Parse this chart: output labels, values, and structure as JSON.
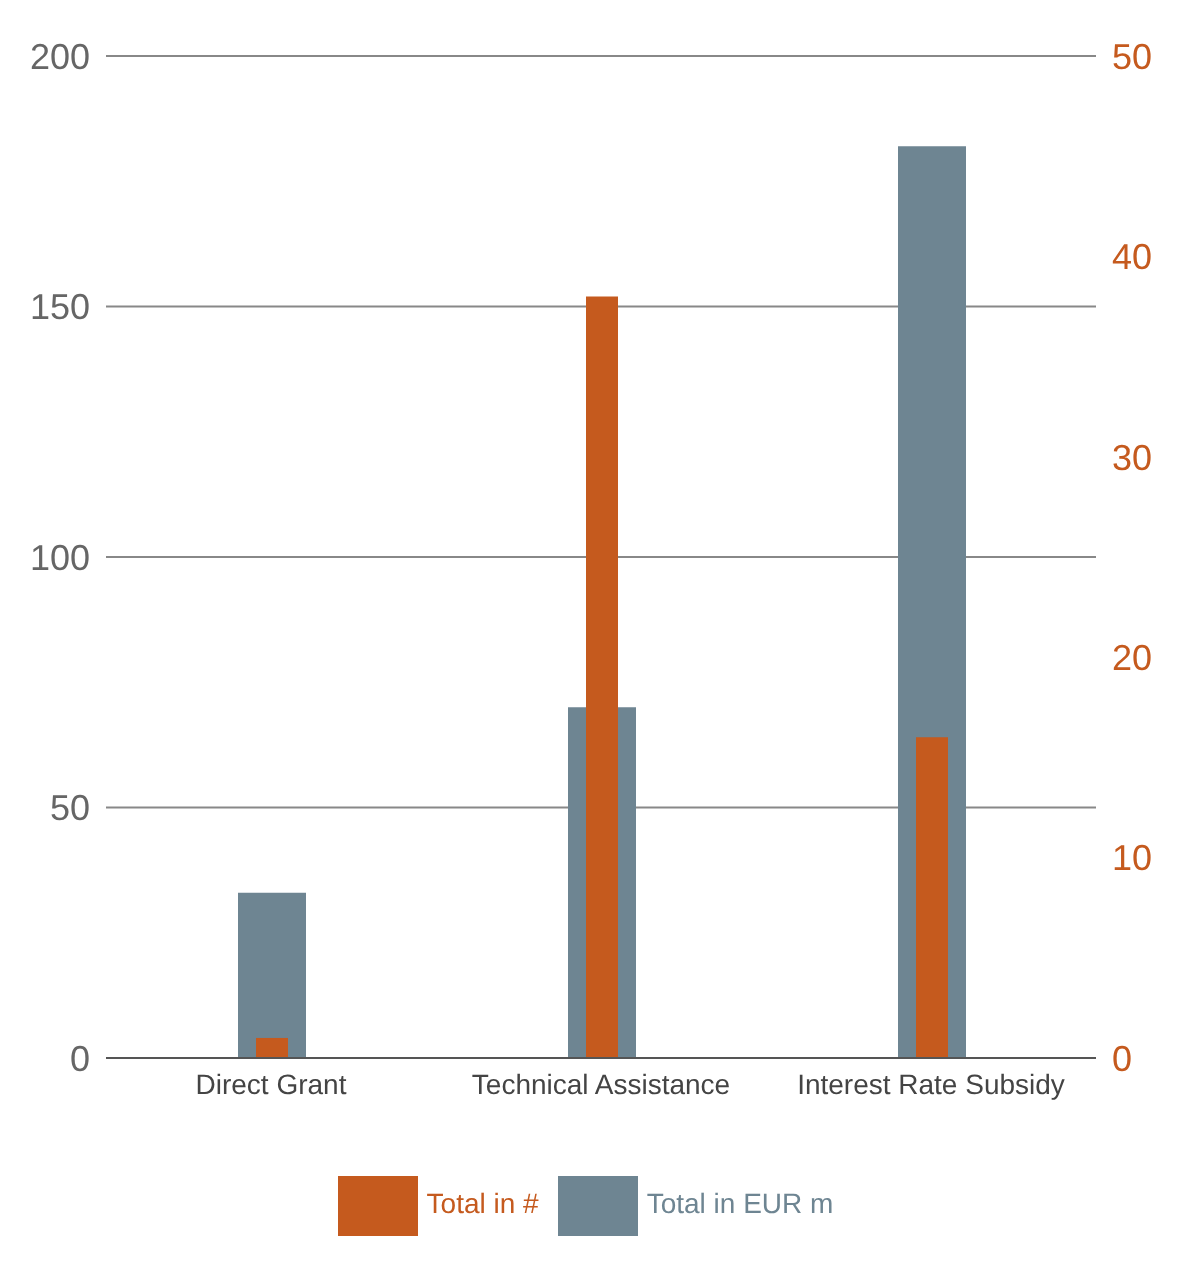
{
  "chart_data": {
    "type": "bar",
    "categories": [
      "Direct Grant",
      "Technical Assistance",
      "Interest Rate Subsidy"
    ],
    "series": [
      {
        "name": "Total in EUR m",
        "color": "#6e8592",
        "values": [
          33,
          70,
          182
        ]
      },
      {
        "name": "Total in #",
        "color": "#c55a1e",
        "values": [
          1,
          38,
          16
        ],
        "axis": "y2"
      }
    ],
    "ylim": [
      0,
      200
    ],
    "yticks": [
      0,
      50,
      100,
      150,
      200
    ],
    "y2lim": [
      0,
      50
    ],
    "y2ticks": [
      0,
      10,
      20,
      30,
      40,
      50
    ],
    "grid": "y",
    "legend": "bottom"
  }
}
